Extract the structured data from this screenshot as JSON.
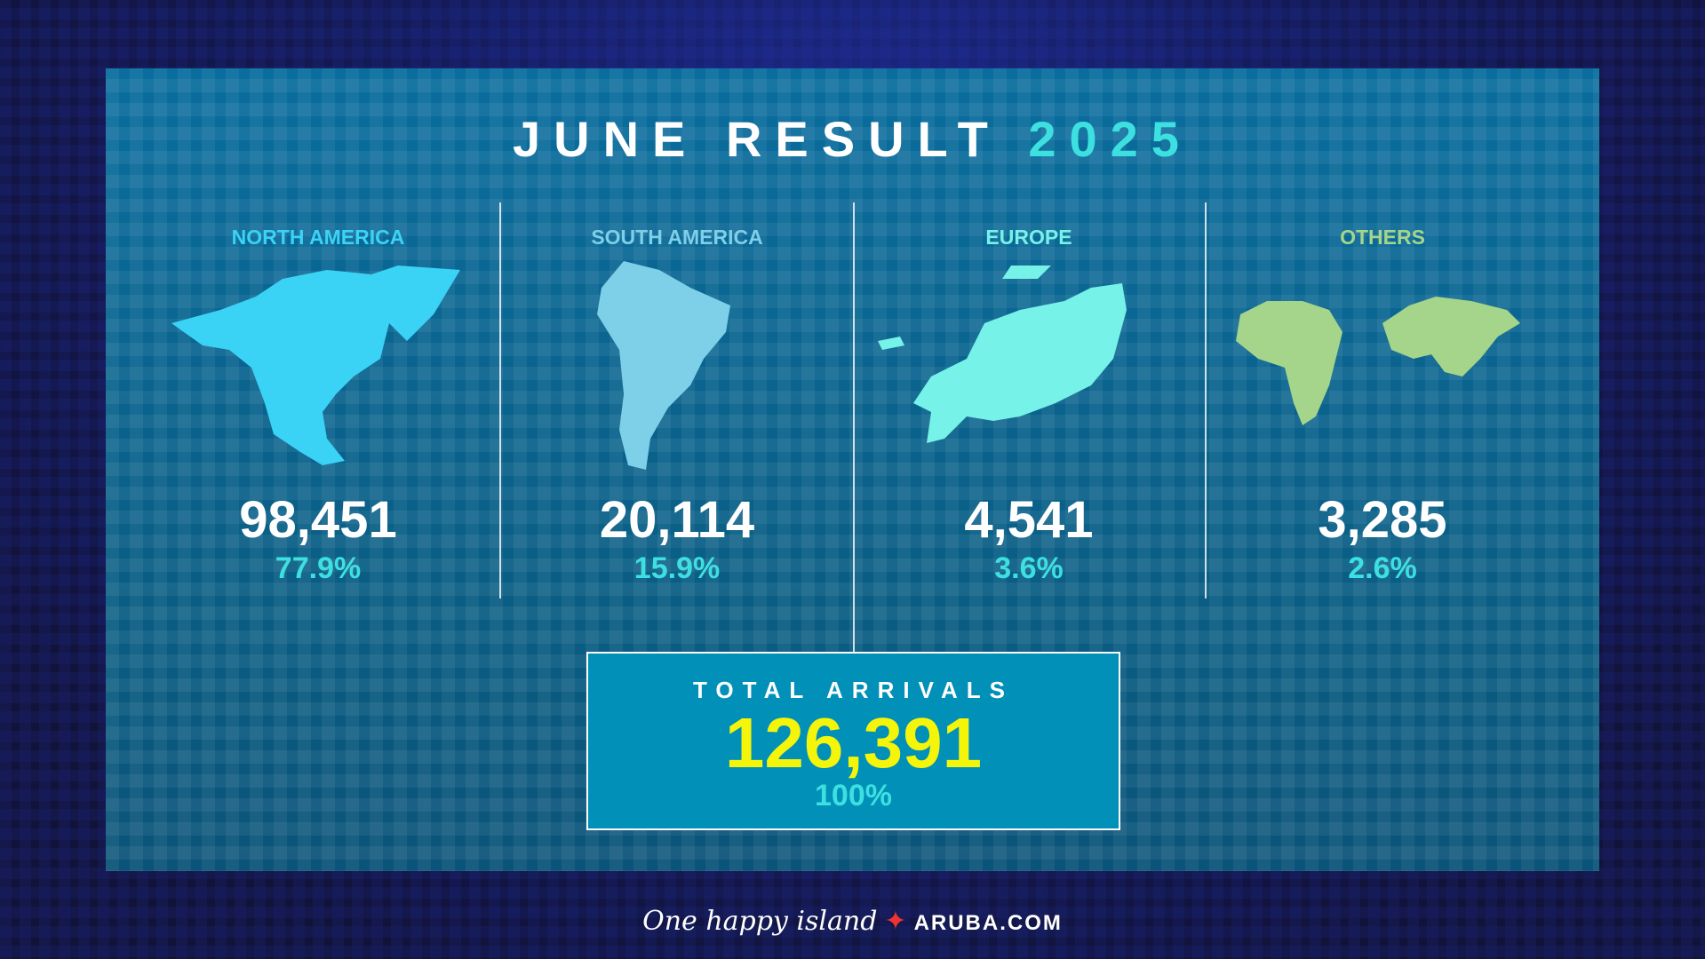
{
  "title": {
    "text": "JUNE RESULT",
    "year": "2025"
  },
  "regions": [
    {
      "label": "NORTH AMERICA",
      "value": "98,451",
      "percent": "77.9%",
      "color": "#3ad3f5",
      "icon": "north-america-map"
    },
    {
      "label": "SOUTH AMERICA",
      "value": "20,114",
      "percent": "15.9%",
      "color": "#7ecfe8",
      "icon": "south-america-map"
    },
    {
      "label": "EUROPE",
      "value": "4,541",
      "percent": "3.6%",
      "color": "#76f2e8",
      "icon": "europe-map"
    },
    {
      "label": "OTHERS",
      "value": "3,285",
      "percent": "2.6%",
      "color": "#a4d58a",
      "icon": "africa-asia-map"
    }
  ],
  "total": {
    "label": "TOTAL ARRIVALS",
    "value": "126,391",
    "percent": "100%"
  },
  "footer": {
    "tagline": "One happy island",
    "site": "ARUBA.COM"
  },
  "colors": {
    "accent": "#3de0e0",
    "total_value": "#f5f50a",
    "panel": "#0a6d9e",
    "total_box": "#0190b8"
  }
}
